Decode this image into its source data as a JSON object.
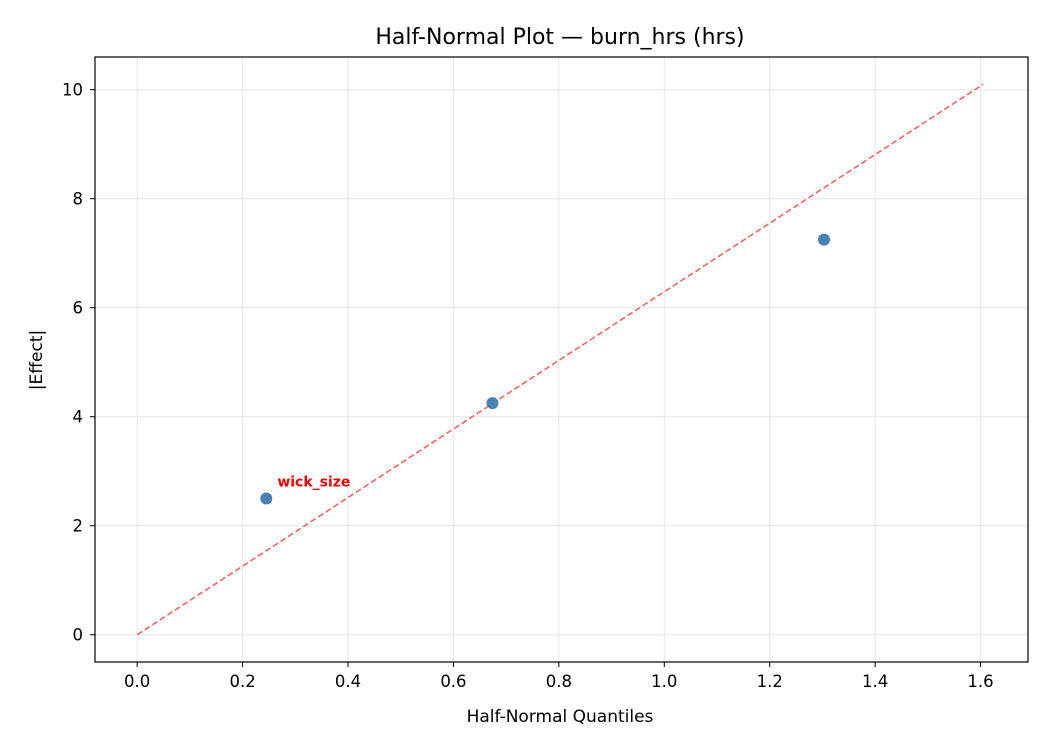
{
  "chart_data": {
    "type": "scatter",
    "title": "Half-Normal Plot — burn_hrs (hrs)",
    "xlabel": "Half-Normal Quantiles",
    "ylabel": "|Effect|",
    "xlim": [
      -0.08,
      1.69
    ],
    "ylim": [
      -0.5,
      10.6
    ],
    "xticks": [
      "0.0",
      "0.2",
      "0.4",
      "0.6",
      "0.8",
      "1.0",
      "1.2",
      "1.4",
      "1.6"
    ],
    "yticks": [
      "0",
      "2",
      "4",
      "6",
      "8",
      "10"
    ],
    "grid": true,
    "points": [
      {
        "x": 0.245,
        "y": 2.5
      },
      {
        "x": 0.674,
        "y": 4.25
      },
      {
        "x": 1.303,
        "y": 7.25
      }
    ],
    "reference_line": {
      "x": [
        0.0,
        1.605
      ],
      "y": [
        0.0,
        10.1
      ],
      "color": "#ee6666",
      "style": "dashed"
    },
    "annotations": [
      {
        "text": "wick_size",
        "x": 0.245,
        "y": 2.5,
        "color": "#ee0000"
      }
    ],
    "colors": {
      "points": "#4682b4",
      "reference_line": "#ee6666",
      "annotation": "#ee0000",
      "grid": "#e6e6e6"
    }
  }
}
